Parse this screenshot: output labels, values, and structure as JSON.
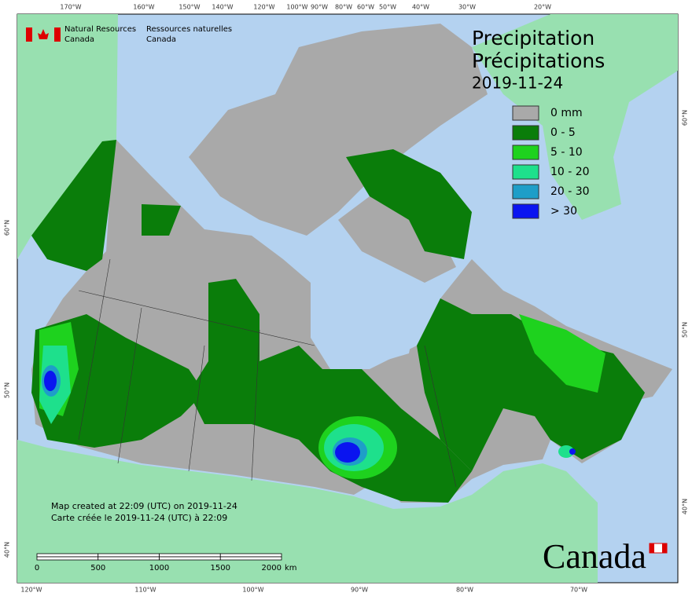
{
  "header": {
    "org_en_1": "Natural Resources",
    "org_en_2": "Canada",
    "org_fr_1": "Ressources naturelles",
    "org_fr_2": "Canada"
  },
  "title": {
    "en": "Precipitation",
    "fr": "Précipitations",
    "date": "2019-11-24"
  },
  "legend": [
    {
      "label": "0 mm",
      "color": "#a9a9a9"
    },
    {
      "label": "0 - 5",
      "color": "#0a7d0a"
    },
    {
      "label": "5 - 10",
      "color": "#1ed21e"
    },
    {
      "label": "10 - 20",
      "color": "#1ee08c"
    },
    {
      "label": "20 - 30",
      "color": "#1e9ec8"
    },
    {
      "label": "> 30",
      "color": "#0a14f0"
    }
  ],
  "graticule": {
    "top": [
      "170°W",
      "160°W",
      "150°W",
      "140°W",
      "120°W",
      "100°W",
      "90°W",
      "80°W",
      "60°W",
      "50°W",
      "40°W",
      "30°W",
      "20°W"
    ],
    "bottom": [
      "120°W",
      "110°W",
      "100°W",
      "90°W",
      "80°W",
      "70°W"
    ],
    "left": [
      "60°N",
      "50°N",
      "40°N"
    ],
    "right": [
      "60°N",
      "50°N",
      "40°N"
    ]
  },
  "notes": [
    "Map created at 22:09 (UTC) on 2019-11-24",
    "Carte créée le 2019-11-24 (UTC) à 22:09"
  ],
  "scale_bar": {
    "labels": [
      0,
      500,
      1000,
      1500,
      2000
    ],
    "unit": "km"
  },
  "wordmark": "Canada"
}
